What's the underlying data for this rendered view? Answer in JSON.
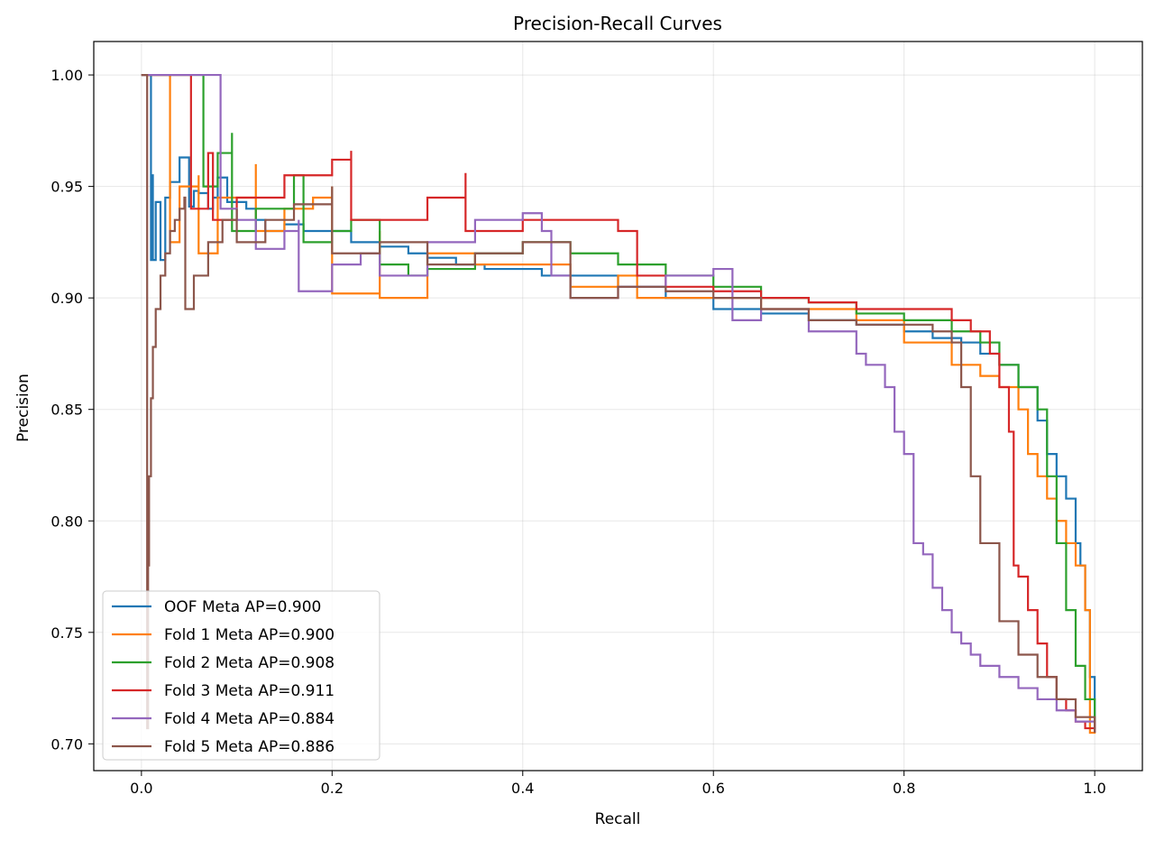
{
  "chart_data": {
    "type": "line",
    "title": "Precision-Recall Curves",
    "xlabel": "Recall",
    "ylabel": "Precision",
    "xlim": [
      -0.05,
      1.05
    ],
    "ylim": [
      0.688,
      1.015
    ],
    "xticks": [
      0.0,
      0.2,
      0.4,
      0.6,
      0.8,
      1.0
    ],
    "xtick_labels": [
      "0.0",
      "0.2",
      "0.4",
      "0.6",
      "0.8",
      "1.0"
    ],
    "yticks": [
      0.7,
      0.75,
      0.8,
      0.85,
      0.9,
      0.95,
      1.0
    ],
    "ytick_labels": [
      "0.70",
      "0.75",
      "0.80",
      "0.85",
      "0.90",
      "0.95",
      "1.00"
    ],
    "grid": true,
    "legend_position": "lower-left",
    "series": [
      {
        "name": "OOF Meta AP=0.900",
        "color": "#1f77b4",
        "x": [
          0.0,
          0.01,
          0.01,
          0.011,
          0.012,
          0.015,
          0.02,
          0.025,
          0.03,
          0.04,
          0.05,
          0.055,
          0.06,
          0.07,
          0.075,
          0.08,
          0.09,
          0.1,
          0.11,
          0.12,
          0.13,
          0.15,
          0.17,
          0.2,
          0.22,
          0.25,
          0.28,
          0.3,
          0.33,
          0.36,
          0.4,
          0.42,
          0.45,
          0.5,
          0.55,
          0.6,
          0.65,
          0.7,
          0.75,
          0.8,
          0.83,
          0.86,
          0.88,
          0.9,
          0.92,
          0.94,
          0.95,
          0.96,
          0.97,
          0.98,
          0.985,
          0.99,
          0.995,
          1.0
        ],
        "y": [
          1.0,
          1.0,
          0.917,
          0.955,
          0.917,
          0.943,
          0.917,
          0.945,
          0.952,
          0.963,
          0.941,
          0.948,
          0.947,
          0.94,
          0.945,
          0.954,
          0.943,
          0.943,
          0.94,
          0.935,
          0.93,
          0.933,
          0.93,
          0.93,
          0.925,
          0.923,
          0.92,
          0.918,
          0.915,
          0.913,
          0.913,
          0.91,
          0.91,
          0.905,
          0.9,
          0.895,
          0.893,
          0.89,
          0.888,
          0.885,
          0.882,
          0.88,
          0.875,
          0.87,
          0.86,
          0.845,
          0.83,
          0.82,
          0.81,
          0.79,
          0.78,
          0.76,
          0.73,
          0.705
        ]
      },
      {
        "name": "Fold 1 Meta AP=0.900",
        "color": "#ff7f0e",
        "x": [
          0.0,
          0.02,
          0.03,
          0.03,
          0.04,
          0.06,
          0.06,
          0.08,
          0.1,
          0.12,
          0.12,
          0.15,
          0.18,
          0.2,
          0.2,
          0.25,
          0.25,
          0.3,
          0.35,
          0.4,
          0.45,
          0.5,
          0.52,
          0.55,
          0.6,
          0.65,
          0.7,
          0.75,
          0.8,
          0.85,
          0.88,
          0.9,
          0.92,
          0.93,
          0.94,
          0.95,
          0.96,
          0.97,
          0.98,
          0.99,
          0.995,
          1.0
        ],
        "y": [
          1.0,
          1.0,
          1.0,
          0.925,
          0.95,
          0.955,
          0.92,
          0.945,
          0.945,
          0.96,
          0.93,
          0.94,
          0.945,
          0.95,
          0.902,
          0.93,
          0.9,
          0.92,
          0.915,
          0.915,
          0.905,
          0.91,
          0.9,
          0.9,
          0.9,
          0.895,
          0.895,
          0.89,
          0.88,
          0.87,
          0.865,
          0.86,
          0.85,
          0.83,
          0.82,
          0.81,
          0.8,
          0.79,
          0.78,
          0.76,
          0.705,
          0.71
        ]
      },
      {
        "name": "Fold 2 Meta AP=0.908",
        "color": "#2ca02c",
        "x": [
          0.0,
          0.06,
          0.065,
          0.065,
          0.08,
          0.095,
          0.095,
          0.12,
          0.16,
          0.17,
          0.2,
          0.22,
          0.25,
          0.28,
          0.3,
          0.35,
          0.4,
          0.45,
          0.5,
          0.55,
          0.6,
          0.65,
          0.7,
          0.75,
          0.8,
          0.85,
          0.88,
          0.9,
          0.92,
          0.94,
          0.95,
          0.96,
          0.97,
          0.98,
          0.99,
          1.0
        ],
        "y": [
          1.0,
          1.0,
          1.0,
          0.95,
          0.965,
          0.974,
          0.93,
          0.94,
          0.955,
          0.925,
          0.93,
          0.935,
          0.915,
          0.91,
          0.913,
          0.92,
          0.925,
          0.92,
          0.915,
          0.91,
          0.905,
          0.9,
          0.898,
          0.893,
          0.89,
          0.885,
          0.88,
          0.87,
          0.86,
          0.85,
          0.82,
          0.79,
          0.76,
          0.735,
          0.72,
          0.71
        ]
      },
      {
        "name": "Fold 3 Meta AP=0.911",
        "color": "#d62728",
        "x": [
          0.0,
          0.05,
          0.052,
          0.052,
          0.07,
          0.075,
          0.075,
          0.1,
          0.15,
          0.2,
          0.22,
          0.22,
          0.26,
          0.3,
          0.34,
          0.34,
          0.4,
          0.45,
          0.5,
          0.52,
          0.55,
          0.6,
          0.65,
          0.7,
          0.75,
          0.8,
          0.85,
          0.87,
          0.89,
          0.9,
          0.91,
          0.915,
          0.92,
          0.93,
          0.94,
          0.95,
          0.96,
          0.97,
          0.98,
          0.99,
          1.0
        ],
        "y": [
          1.0,
          1.0,
          1.0,
          0.94,
          0.965,
          0.965,
          0.935,
          0.945,
          0.955,
          0.962,
          0.966,
          0.935,
          0.935,
          0.945,
          0.956,
          0.93,
          0.935,
          0.935,
          0.93,
          0.91,
          0.905,
          0.903,
          0.9,
          0.898,
          0.895,
          0.895,
          0.89,
          0.885,
          0.875,
          0.86,
          0.84,
          0.78,
          0.775,
          0.76,
          0.745,
          0.73,
          0.72,
          0.715,
          0.71,
          0.707,
          0.71
        ]
      },
      {
        "name": "Fold 4 Meta AP=0.884",
        "color": "#9467bd",
        "x": [
          0.0,
          0.083,
          0.083,
          0.1,
          0.12,
          0.12,
          0.15,
          0.165,
          0.165,
          0.2,
          0.23,
          0.25,
          0.3,
          0.35,
          0.4,
          0.42,
          0.43,
          0.45,
          0.5,
          0.55,
          0.6,
          0.62,
          0.65,
          0.7,
          0.72,
          0.75,
          0.76,
          0.78,
          0.79,
          0.8,
          0.81,
          0.82,
          0.83,
          0.84,
          0.85,
          0.86,
          0.87,
          0.88,
          0.9,
          0.92,
          0.94,
          0.96,
          0.98,
          1.0
        ],
        "y": [
          1.0,
          1.0,
          0.94,
          0.935,
          0.935,
          0.922,
          0.93,
          0.935,
          0.903,
          0.915,
          0.92,
          0.91,
          0.925,
          0.935,
          0.938,
          0.93,
          0.91,
          0.9,
          0.905,
          0.91,
          0.913,
          0.89,
          0.895,
          0.885,
          0.885,
          0.875,
          0.87,
          0.86,
          0.84,
          0.83,
          0.79,
          0.785,
          0.77,
          0.76,
          0.75,
          0.745,
          0.74,
          0.735,
          0.73,
          0.725,
          0.72,
          0.715,
          0.71,
          0.705
        ]
      },
      {
        "name": "Fold 5 Meta AP=0.886",
        "color": "#8c564b",
        "x": [
          0.0,
          0.005,
          0.006,
          0.006,
          0.007,
          0.008,
          0.01,
          0.012,
          0.015,
          0.02,
          0.025,
          0.03,
          0.035,
          0.04,
          0.045,
          0.046,
          0.046,
          0.055,
          0.07,
          0.085,
          0.1,
          0.1,
          0.13,
          0.16,
          0.2,
          0.2,
          0.25,
          0.3,
          0.35,
          0.4,
          0.45,
          0.5,
          0.55,
          0.6,
          0.65,
          0.7,
          0.75,
          0.8,
          0.83,
          0.85,
          0.86,
          0.87,
          0.88,
          0.9,
          0.92,
          0.94,
          0.96,
          0.98,
          1.0
        ],
        "y": [
          1.0,
          1.0,
          1.0,
          0.707,
          0.78,
          0.82,
          0.855,
          0.878,
          0.895,
          0.91,
          0.92,
          0.93,
          0.935,
          0.94,
          0.945,
          0.945,
          0.895,
          0.91,
          0.925,
          0.935,
          0.94,
          0.925,
          0.935,
          0.942,
          0.95,
          0.92,
          0.925,
          0.915,
          0.92,
          0.925,
          0.9,
          0.905,
          0.903,
          0.9,
          0.895,
          0.89,
          0.888,
          0.888,
          0.885,
          0.88,
          0.86,
          0.82,
          0.79,
          0.755,
          0.74,
          0.73,
          0.72,
          0.712,
          0.705
        ]
      }
    ]
  }
}
